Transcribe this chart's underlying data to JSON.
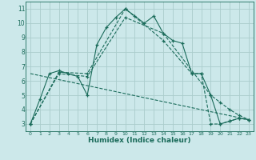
{
  "xlabel": "Humidex (Indice chaleur)",
  "bg_color": "#cce8ea",
  "grid_color": "#aacccc",
  "line_color": "#1a6b5a",
  "xlim": [
    -0.5,
    23.5
  ],
  "ylim": [
    2.5,
    11.5
  ],
  "xticks": [
    0,
    1,
    2,
    3,
    4,
    5,
    6,
    7,
    8,
    9,
    10,
    11,
    12,
    13,
    14,
    15,
    16,
    17,
    18,
    19,
    20,
    21,
    22,
    23
  ],
  "yticks": [
    3,
    4,
    5,
    6,
    7,
    8,
    9,
    10,
    11
  ],
  "series": [
    {
      "x": [
        0,
        1,
        2,
        3,
        4,
        5,
        6,
        7,
        8,
        9,
        10,
        11,
        12,
        13,
        14,
        15,
        16,
        17,
        18,
        19,
        20,
        21,
        22,
        23
      ],
      "y": [
        3.0,
        4.7,
        6.5,
        6.7,
        6.5,
        6.3,
        5.0,
        8.5,
        9.7,
        10.4,
        11.0,
        10.5,
        10.0,
        10.5,
        9.3,
        8.8,
        8.6,
        6.5,
        6.5,
        5.0,
        3.0,
        3.2,
        3.4,
        3.3
      ],
      "linestyle": "-",
      "marker": true
    },
    {
      "x": [
        0,
        3,
        6,
        10,
        14,
        19,
        20,
        21,
        22,
        23
      ],
      "y": [
        3.0,
        6.5,
        6.3,
        10.4,
        9.3,
        5.0,
        4.5,
        4.0,
        3.6,
        3.3
      ],
      "linestyle": "--",
      "marker": true
    },
    {
      "x": [
        0,
        3,
        6,
        10,
        14,
        17,
        18,
        19,
        20,
        21,
        22,
        23
      ],
      "y": [
        3.0,
        6.6,
        6.5,
        11.0,
        8.8,
        6.5,
        6.5,
        3.0,
        3.0,
        3.2,
        3.4,
        3.3
      ],
      "linestyle": "--",
      "marker": true
    },
    {
      "x": [
        0,
        23
      ],
      "y": [
        6.5,
        3.3
      ],
      "linestyle": "--",
      "marker": false
    }
  ]
}
